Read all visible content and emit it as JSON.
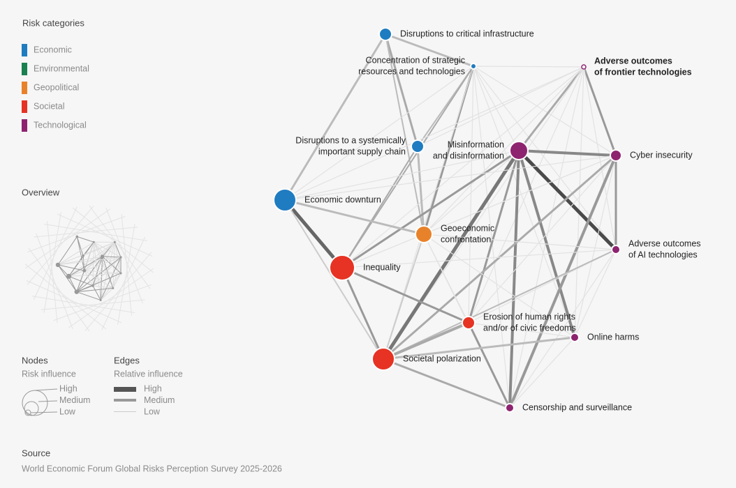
{
  "legend": {
    "title": "Risk categories",
    "items": [
      "Economic",
      "Environmental",
      "Geopolitical",
      "Societal",
      "Technological"
    ]
  },
  "overview": {
    "title": "Overview"
  },
  "nodes_legend": {
    "title": "Nodes",
    "subtitle": "Risk influence",
    "levels": [
      "High",
      "Medium",
      "Low"
    ]
  },
  "edges_legend": {
    "title": "Edges",
    "subtitle": "Relative influence",
    "levels": [
      "High",
      "Medium",
      "Low"
    ]
  },
  "nodes": [
    {
      "label": [
        "Disruptions to critical infrastructure"
      ]
    },
    {
      "label": [
        "Concentration of strategic",
        "resources and technologies"
      ]
    },
    {
      "label": [
        "Adverse outcomes",
        "of frontier technologies"
      ]
    },
    {
      "label": [
        "Disruptions to a systemically",
        "important supply chain"
      ]
    },
    {
      "label": [
        "Misinformation",
        "and disinformation"
      ]
    },
    {
      "label": [
        "Cyber insecurity"
      ]
    },
    {
      "label": [
        "Economic downturn"
      ]
    },
    {
      "label": [
        "Geoeconomic",
        "confrontation"
      ]
    },
    {
      "label": [
        "Adverse outcomes",
        "of AI technologies"
      ]
    },
    {
      "label": [
        "Inequality"
      ]
    },
    {
      "label": [
        "Erosion of human rights",
        "and/or of civic freedoms"
      ]
    },
    {
      "label": [
        "Online harms"
      ]
    },
    {
      "label": [
        "Societal polarization"
      ]
    },
    {
      "label": [
        "Censorship and surveillance"
      ]
    }
  ],
  "source": {
    "title": "Source",
    "text": "World Economic Forum Global Risks Perception Survey 2025-2026"
  }
}
